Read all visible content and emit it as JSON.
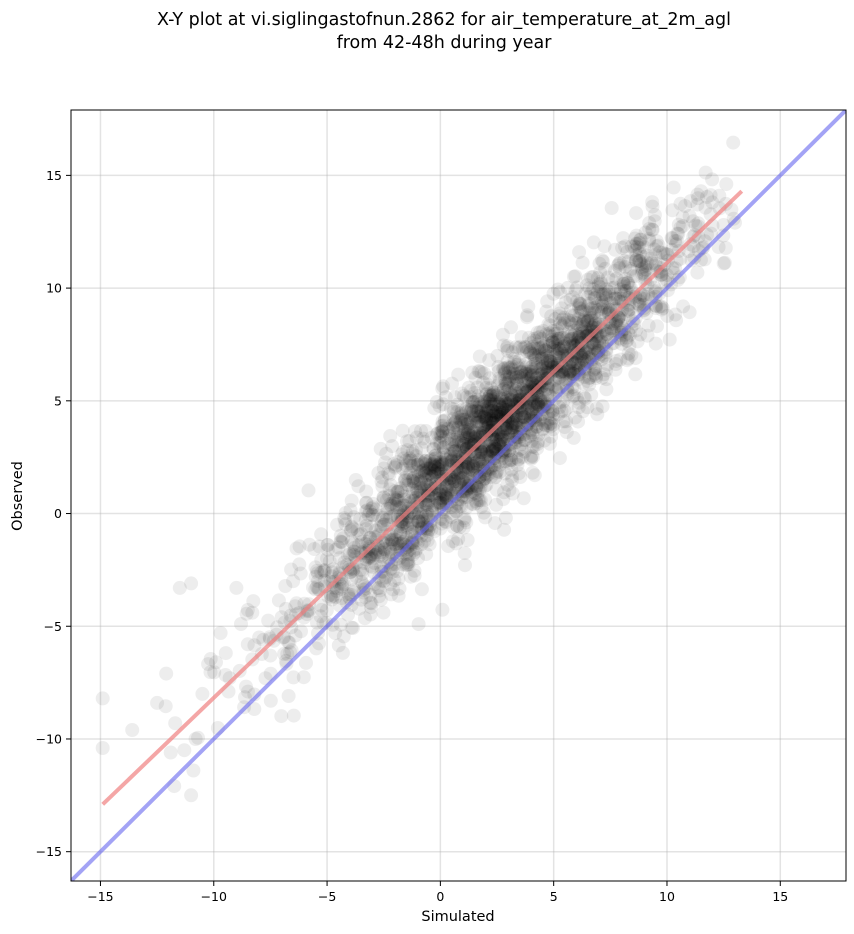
{
  "chart_data": {
    "type": "scatter",
    "title_lines": [
      "X-Y plot at vi.siglingastofnun.2862 for air_temperature_at_2m_agl",
      "from 42-48h during year"
    ],
    "xlabel": "Simulated",
    "ylabel": "Observed",
    "xlim": [
      -16.3,
      17.9
    ],
    "ylim": [
      -16.3,
      17.9
    ],
    "xticks": [
      -15,
      -10,
      -5,
      0,
      5,
      10,
      15
    ],
    "yticks": [
      -15,
      -10,
      -5,
      0,
      5,
      10,
      15
    ],
    "xtick_labels": [
      "−15",
      "−10",
      "−5",
      "0",
      "5",
      "10",
      "15"
    ],
    "ytick_labels": [
      "−15",
      "−10",
      "−5",
      "0",
      "5",
      "10",
      "15"
    ],
    "grid": true,
    "points": {
      "color": "#000000",
      "opacity": 0.07,
      "sample_x": [
        -14.9,
        -14.9,
        -13.6,
        -12.5,
        -12.1,
        -11.9,
        -11.7,
        -11.5,
        -11.3,
        -11.0,
        -11.0,
        -10.9,
        -10.8,
        -10.5,
        -9.9,
        -9.7,
        -9.3,
        -9.0,
        -8.8,
        -8.5,
        -8.3,
        -8.0,
        -7.5,
        -7.0,
        -6.5,
        -6.0,
        -5.5,
        -5.0,
        -4.5,
        -4.0,
        -3.5,
        -3.0,
        -2.5,
        -2.0,
        -1.5,
        -1.0,
        -0.5,
        0.0,
        0.5,
        1.0,
        1.5,
        2.0,
        2.5,
        3.0,
        3.5,
        4.0,
        4.5,
        5.0,
        5.5,
        6.0,
        6.5,
        7.0,
        7.5,
        8.0,
        8.5,
        9.0,
        9.5,
        10.0,
        10.5,
        11.0,
        11.5,
        12.0,
        12.5,
        13.0
      ],
      "sample_y": [
        -8.2,
        -10.4,
        -9.6,
        -8.4,
        -7.1,
        -10.6,
        -9.3,
        -3.3,
        -10.5,
        -3.1,
        -12.5,
        -11.4,
        -10.0,
        -8.0,
        -6.6,
        -5.3,
        -7.3,
        -3.3,
        -4.9,
        -5.8,
        -4.4,
        -5.5,
        -6.3,
        -4.6,
        -3.0,
        -4.0,
        -2.8,
        -2.0,
        -1.5,
        -1.8,
        -0.9,
        -1.6,
        0.7,
        1.0,
        1.3,
        1.5,
        2.0,
        1.2,
        2.3,
        3.0,
        3.2,
        3.6,
        4.0,
        4.8,
        5.2,
        5.6,
        5.9,
        6.5,
        7.0,
        7.5,
        8.0,
        8.4,
        9.0,
        9.4,
        9.8,
        10.6,
        11.0,
        11.5,
        12.4,
        13.2,
        14.3,
        13.8,
        12.8,
        12.9
      ]
    },
    "regression_line": {
      "color": "#f08080",
      "x": [
        -14.9,
        13.3
      ],
      "y": [
        -12.9,
        14.3
      ]
    },
    "identity_line": {
      "color": "#6666ee",
      "x": [
        -16.3,
        17.9
      ],
      "y": [
        -16.3,
        17.9
      ]
    }
  }
}
